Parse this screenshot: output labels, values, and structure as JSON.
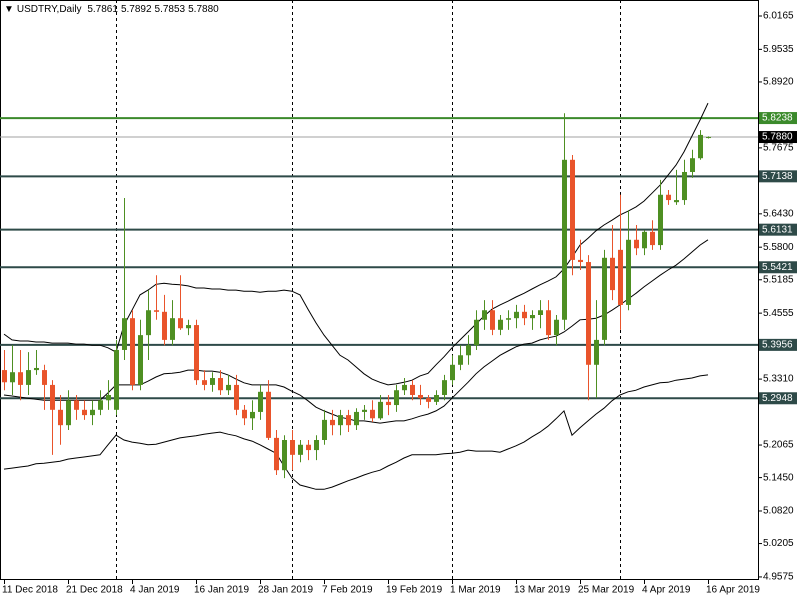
{
  "chart_data": {
    "type": "candlestick",
    "title": "USDTRY,Daily",
    "title_values": [
      "5.7861",
      "5.7892",
      "5.7853",
      "5.7880"
    ],
    "x": [
      "11 Dec 2018",
      "12 Dec 2018",
      "13 Dec 2018",
      "14 Dec 2018",
      "17 Dec 2018",
      "18 Dec 2018",
      "19 Dec 2018",
      "20 Dec 2018",
      "21 Dec 2018",
      "24 Dec 2018",
      "26 Dec 2018",
      "27 Dec 2018",
      "28 Dec 2018",
      "31 Dec 2018",
      "2 Jan 2019",
      "3 Jan 2019",
      "4 Jan 2019",
      "7 Jan 2019",
      "8 Jan 2019",
      "9 Jan 2019",
      "10 Jan 2019",
      "11 Jan 2019",
      "14 Jan 2019",
      "15 Jan 2019",
      "16 Jan 2019",
      "17 Jan 2019",
      "18 Jan 2019",
      "21 Jan 2019",
      "22 Jan 2019",
      "23 Jan 2019",
      "24 Jan 2019",
      "25 Jan 2019",
      "28 Jan 2019",
      "29 Jan 2019",
      "30 Jan 2019",
      "31 Jan 2019",
      "1 Feb 2019",
      "4 Feb 2019",
      "5 Feb 2019",
      "6 Feb 2019",
      "7 Feb 2019",
      "8 Feb 2019",
      "11 Feb 2019",
      "12 Feb 2019",
      "13 Feb 2019",
      "14 Feb 2019",
      "15 Feb 2019",
      "18 Feb 2019",
      "19 Feb 2019",
      "20 Feb 2019",
      "21 Feb 2019",
      "22 Feb 2019",
      "25 Feb 2019",
      "26 Feb 2019",
      "27 Feb 2019",
      "28 Feb 2019",
      "1 Mar 2019",
      "4 Mar 2019",
      "5 Mar 2019",
      "6 Mar 2019",
      "7 Mar 2019",
      "8 Mar 2019",
      "11 Mar 2019",
      "12 Mar 2019",
      "13 Mar 2019",
      "14 Mar 2019",
      "15 Mar 2019",
      "18 Mar 2019",
      "19 Mar 2019",
      "20 Mar 2019",
      "21 Mar 2019",
      "22 Mar 2019",
      "25 Mar 2019",
      "26 Mar 2019",
      "27 Mar 2019",
      "28 Mar 2019",
      "29 Mar 2019",
      "1 Apr 2019",
      "2 Apr 2019",
      "3 Apr 2019",
      "4 Apr 2019",
      "5 Apr 2019",
      "8 Apr 2019",
      "9 Apr 2019",
      "10 Apr 2019",
      "11 Apr 2019",
      "12 Apr 2019",
      "15 Apr 2019",
      "16 Apr 2019"
    ],
    "open": [
      5.348,
      5.325,
      5.344,
      5.32,
      5.348,
      5.348,
      5.32,
      5.273,
      5.244,
      5.291,
      5.273,
      5.263,
      5.273,
      5.291,
      5.273,
      5.386,
      5.446,
      5.32,
      5.414,
      5.461,
      5.458,
      5.405,
      5.446,
      5.427,
      5.433,
      5.329,
      5.32,
      5.333,
      5.31,
      5.32,
      5.273,
      5.257,
      5.269,
      5.307,
      5.22,
      5.159,
      5.216,
      5.188,
      5.207,
      5.197,
      5.216,
      5.254,
      5.244,
      5.263,
      5.244,
      5.269,
      5.273,
      5.257,
      5.288,
      5.282,
      5.31,
      5.32,
      5.301,
      5.295,
      5.288,
      5.301,
      5.329,
      5.358,
      5.376,
      5.395,
      5.443,
      5.461,
      5.424,
      5.443,
      5.446,
      5.458,
      5.446,
      5.452,
      5.461,
      5.414,
      5.443,
      5.745,
      5.556,
      5.552,
      5.358,
      5.405,
      5.56,
      5.575,
      5.471,
      5.594,
      5.578,
      5.609,
      5.584,
      5.679,
      5.665,
      5.669,
      5.722,
      5.748,
      5.7861
    ],
    "high": [
      5.386,
      5.395,
      5.386,
      5.382,
      5.386,
      5.358,
      5.329,
      5.301,
      5.31,
      5.301,
      5.291,
      5.291,
      5.31,
      5.329,
      5.405,
      5.673,
      5.461,
      5.443,
      5.499,
      5.527,
      5.49,
      5.48,
      5.527,
      5.443,
      5.443,
      5.348,
      5.344,
      5.348,
      5.339,
      5.339,
      5.282,
      5.291,
      5.32,
      5.329,
      5.235,
      5.225,
      5.235,
      5.216,
      5.216,
      5.225,
      5.273,
      5.273,
      5.273,
      5.273,
      5.276,
      5.282,
      5.291,
      5.301,
      5.301,
      5.32,
      5.333,
      5.329,
      5.32,
      5.301,
      5.31,
      5.339,
      5.376,
      5.395,
      5.414,
      5.461,
      5.48,
      5.48,
      5.452,
      5.461,
      5.471,
      5.471,
      5.461,
      5.48,
      5.48,
      5.452,
      5.833,
      5.754,
      5.594,
      5.565,
      5.48,
      5.575,
      5.622,
      5.679,
      5.65,
      5.622,
      5.612,
      5.631,
      5.707,
      5.688,
      5.726,
      5.745,
      5.764,
      5.801,
      5.7892
    ],
    "low": [
      5.31,
      5.301,
      5.291,
      5.301,
      5.339,
      5.273,
      5.188,
      5.207,
      5.235,
      5.254,
      5.254,
      5.244,
      5.263,
      5.273,
      5.263,
      5.367,
      5.31,
      5.31,
      5.367,
      5.443,
      5.395,
      5.395,
      5.424,
      5.414,
      5.32,
      5.31,
      5.307,
      5.301,
      5.301,
      5.263,
      5.244,
      5.235,
      5.254,
      5.216,
      5.15,
      5.144,
      5.159,
      5.174,
      5.178,
      5.178,
      5.207,
      5.225,
      5.225,
      5.231,
      5.235,
      5.254,
      5.25,
      5.254,
      5.263,
      5.269,
      5.301,
      5.291,
      5.282,
      5.276,
      5.282,
      5.291,
      5.32,
      5.348,
      5.358,
      5.386,
      5.424,
      5.414,
      5.414,
      5.424,
      5.427,
      5.433,
      5.424,
      5.427,
      5.405,
      5.395,
      5.424,
      5.527,
      5.537,
      5.291,
      5.295,
      5.395,
      5.48,
      5.424,
      5.461,
      5.565,
      5.565,
      5.575,
      5.575,
      5.66,
      5.66,
      5.66,
      5.711,
      5.745,
      5.7853
    ],
    "close": [
      5.325,
      5.344,
      5.32,
      5.348,
      5.352,
      5.32,
      5.273,
      5.244,
      5.291,
      5.273,
      5.263,
      5.273,
      5.291,
      5.301,
      5.386,
      5.446,
      5.32,
      5.414,
      5.461,
      5.458,
      5.405,
      5.446,
      5.427,
      5.433,
      5.329,
      5.32,
      5.333,
      5.31,
      5.32,
      5.273,
      5.257,
      5.269,
      5.307,
      5.22,
      5.159,
      5.216,
      5.188,
      5.207,
      5.197,
      5.216,
      5.254,
      5.244,
      5.263,
      5.244,
      5.269,
      5.273,
      5.257,
      5.288,
      5.282,
      5.31,
      5.32,
      5.301,
      5.295,
      5.288,
      5.301,
      5.329,
      5.358,
      5.376,
      5.395,
      5.443,
      5.461,
      5.424,
      5.443,
      5.446,
      5.458,
      5.446,
      5.452,
      5.461,
      5.414,
      5.443,
      5.745,
      5.556,
      5.552,
      5.358,
      5.405,
      5.56,
      5.499,
      5.471,
      5.594,
      5.578,
      5.609,
      5.584,
      5.679,
      5.669,
      5.669,
      5.722,
      5.748,
      5.792,
      5.788
    ],
    "up_color": "#4e8f22",
    "down_color": "#e9542b",
    "bands": [
      {
        "color": "#000000",
        "values": [
          5.416,
          5.405,
          5.403,
          5.403,
          5.401,
          5.401,
          5.399,
          5.399,
          5.399,
          5.397,
          5.397,
          5.395,
          5.395,
          5.39,
          5.382,
          5.433,
          5.461,
          5.49,
          5.499,
          5.51,
          5.512,
          5.51,
          5.509,
          5.507,
          5.503,
          5.503,
          5.501,
          5.501,
          5.499,
          5.499,
          5.497,
          5.497,
          5.495,
          5.497,
          5.497,
          5.499,
          5.497,
          5.49,
          5.463,
          5.437,
          5.414,
          5.395,
          5.376,
          5.367,
          5.354,
          5.341,
          5.331,
          5.325,
          5.32,
          5.322,
          5.325,
          5.329,
          5.337,
          5.342,
          5.358,
          5.373,
          5.39,
          5.405,
          5.42,
          5.435,
          5.45,
          5.463,
          5.471,
          5.478,
          5.486,
          5.493,
          5.501,
          5.509,
          5.516,
          5.524,
          5.539,
          5.561,
          5.584,
          5.597,
          5.611,
          5.622,
          5.631,
          5.641,
          5.648,
          5.656,
          5.667,
          5.682,
          5.697,
          5.716,
          5.735,
          5.76,
          5.79,
          5.82,
          5.852
        ]
      },
      {
        "color": "#000000",
        "values": [
          5.301,
          5.299,
          5.297,
          5.295,
          5.293,
          5.291,
          5.291,
          5.291,
          5.291,
          5.291,
          5.291,
          5.291,
          5.291,
          5.305,
          5.32,
          5.32,
          5.32,
          5.32,
          5.327,
          5.335,
          5.341,
          5.342,
          5.344,
          5.348,
          5.348,
          5.346,
          5.346,
          5.344,
          5.339,
          5.331,
          5.324,
          5.32,
          5.32,
          5.32,
          5.32,
          5.316,
          5.308,
          5.301,
          5.29,
          5.278,
          5.271,
          5.265,
          5.259,
          5.256,
          5.252,
          5.252,
          5.25,
          5.248,
          5.25,
          5.252,
          5.252,
          5.256,
          5.261,
          5.265,
          5.271,
          5.28,
          5.295,
          5.31,
          5.325,
          5.341,
          5.354,
          5.365,
          5.376,
          5.384,
          5.392,
          5.397,
          5.399,
          5.405,
          5.409,
          5.412,
          5.42,
          5.431,
          5.443,
          5.444,
          5.446,
          5.452,
          5.461,
          5.471,
          5.482,
          5.493,
          5.505,
          5.516,
          5.527,
          5.537,
          5.546,
          5.558,
          5.571,
          5.584,
          5.594
        ]
      },
      {
        "color": "#000000",
        "values": [
          5.161,
          5.163,
          5.165,
          5.167,
          5.171,
          5.172,
          5.174,
          5.176,
          5.18,
          5.182,
          5.184,
          5.186,
          5.188,
          5.207,
          5.225,
          5.216,
          5.212,
          5.21,
          5.207,
          5.208,
          5.212,
          5.216,
          5.22,
          5.222,
          5.224,
          5.227,
          5.229,
          5.231,
          5.227,
          5.224,
          5.218,
          5.214,
          5.207,
          5.199,
          5.191,
          5.167,
          5.144,
          5.131,
          5.127,
          5.123,
          5.123,
          5.127,
          5.133,
          5.139,
          5.144,
          5.15,
          5.155,
          5.159,
          5.167,
          5.174,
          5.182,
          5.188,
          5.188,
          5.188,
          5.188,
          5.19,
          5.191,
          5.193,
          5.197,
          5.195,
          5.195,
          5.195,
          5.193,
          5.199,
          5.205,
          5.212,
          5.222,
          5.231,
          5.242,
          5.256,
          5.271,
          5.225,
          5.239,
          5.252,
          5.265,
          5.276,
          5.29,
          5.301,
          5.307,
          5.31,
          5.316,
          5.32,
          5.324,
          5.325,
          5.329,
          5.331,
          5.333,
          5.337,
          5.339
        ]
      }
    ],
    "levels": [
      {
        "value": 5.8238,
        "color": "#3b8a2b"
      },
      {
        "value": 5.7138,
        "color": "#2e4a48"
      },
      {
        "value": 5.6131,
        "color": "#2e4a48"
      },
      {
        "value": 5.5421,
        "color": "#2e4a48"
      },
      {
        "value": 5.3956,
        "color": "#2e4a48"
      },
      {
        "value": 5.2948,
        "color": "#2e4a48"
      }
    ],
    "current_price": {
      "value": 5.788,
      "label": "5.7880",
      "color": "#a0a0a0"
    },
    "ylim": [
      4.9517,
      6.0467
    ],
    "yticks": [
      6.0165,
      5.9535,
      {
        "value": 5.892,
        "label": "5.8920"
      },
      5.7675,
      {
        "value": 5.643,
        "label": "5.6430"
      },
      {
        "value": 5.58,
        "label": "5.5800"
      },
      5.5185,
      5.4555,
      {
        "value": 5.331,
        "label": "5.3310"
      },
      5.2065,
      {
        "value": 5.145,
        "label": "5.1450"
      },
      {
        "value": 5.082,
        "label": "5.0820"
      },
      5.0205,
      4.9575
    ],
    "xticks": [
      "11 Dec 2018",
      "21 Dec 2018",
      "4 Jan 2019",
      "16 Jan 2019",
      "28 Jan 2019",
      "7 Feb 2019",
      "19 Feb 2019",
      "1 Mar 2019",
      "13 Mar 2019",
      "25 Mar 2019",
      "4 Apr 2019",
      "16 Apr 2019"
    ]
  }
}
